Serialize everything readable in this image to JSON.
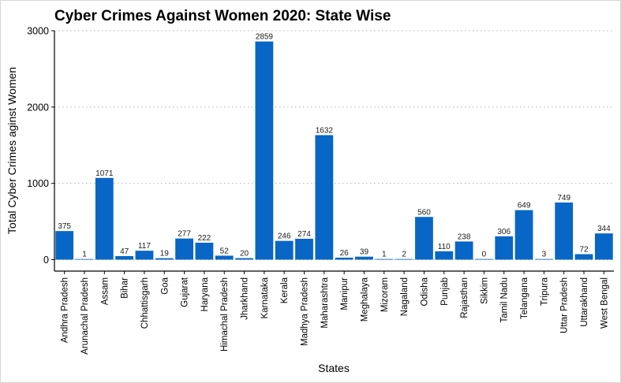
{
  "chart_data": {
    "type": "bar",
    "title": "Cyber Crimes Against Women 2020: State Wise",
    "xlabel": "States",
    "ylabel": "Total Cyber Crimes aginst Women",
    "ylim": [
      -150,
      3000
    ],
    "yticks": [
      0,
      1000,
      2000,
      3000
    ],
    "grid": "horizontal-dotted",
    "bar_color": "#0866c6",
    "categories": [
      "Andhra Pradesh",
      "Arunachal Pradesh",
      "Assam",
      "Bihar",
      "Chhattisgarh",
      "Goa",
      "Gujarat",
      "Haryana",
      "Himachal Pradesh",
      "Jharkhand",
      "Karnataka",
      "Kerala",
      "Madhya Pradesh",
      "Maharashtra",
      "Manipur",
      "Meghalaya",
      "Mizoram",
      "Nagaland",
      "Odisha",
      "Punjab",
      "Rajasthan",
      "Sikkim",
      "Tamil Nadu",
      "Telangana",
      "Tripura",
      "Uttar Pradesh",
      "Uttarakhand",
      "West Bengal"
    ],
    "values": [
      375,
      1,
      1071,
      47,
      117,
      19,
      277,
      222,
      52,
      20,
      2859,
      246,
      274,
      1632,
      26,
      39,
      1,
      2,
      560,
      110,
      238,
      0,
      306,
      649,
      3,
      749,
      72,
      344
    ]
  }
}
